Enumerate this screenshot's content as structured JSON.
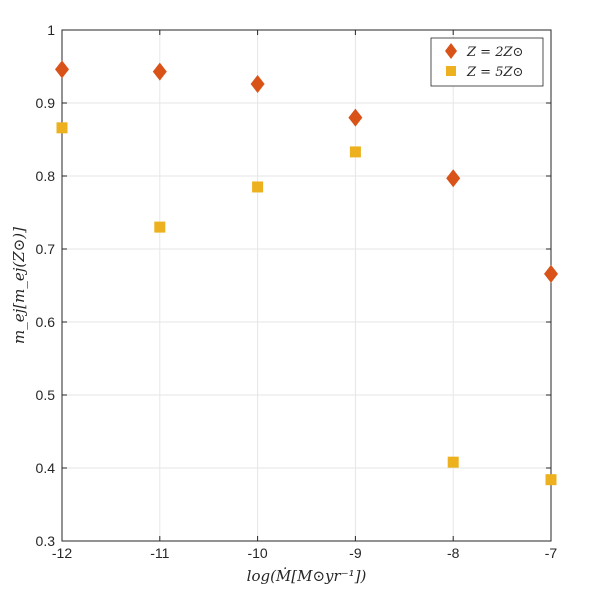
{
  "chart_data": {
    "type": "scatter",
    "x": [
      -12,
      -11,
      -10,
      -9,
      -8,
      -7
    ],
    "xlim": [
      -12,
      -7
    ],
    "ylim": [
      0.3,
      1
    ],
    "xticks": [
      -12,
      -11,
      -10,
      -9,
      -8,
      -7
    ],
    "yticks": [
      0.3,
      0.4,
      0.5,
      0.6,
      0.7,
      0.8,
      0.9,
      1
    ],
    "xtick_labels": [
      "-12",
      "-11",
      "-10",
      "-9",
      "-8",
      "-7"
    ],
    "ytick_labels": [
      "0.3",
      "0.4",
      "0.5",
      "0.6",
      "0.7",
      "0.8",
      "0.9",
      "1"
    ],
    "xlabel": "log(Ṁ[M⊙yr⁻¹])",
    "ylabel": "m_ej[m_ej(Z⊙)]",
    "grid": true,
    "legend_position": "top-right",
    "series": [
      {
        "name": "Z = 2Z⊙",
        "marker": "diamond",
        "color": "#d95319",
        "values": [
          0.946,
          0.943,
          0.926,
          0.88,
          0.797,
          0.666
        ]
      },
      {
        "name": "Z = 5Z⊙",
        "marker": "square",
        "color": "#edb120",
        "values": [
          0.866,
          0.73,
          0.785,
          0.833,
          0.408,
          0.384
        ]
      }
    ]
  }
}
